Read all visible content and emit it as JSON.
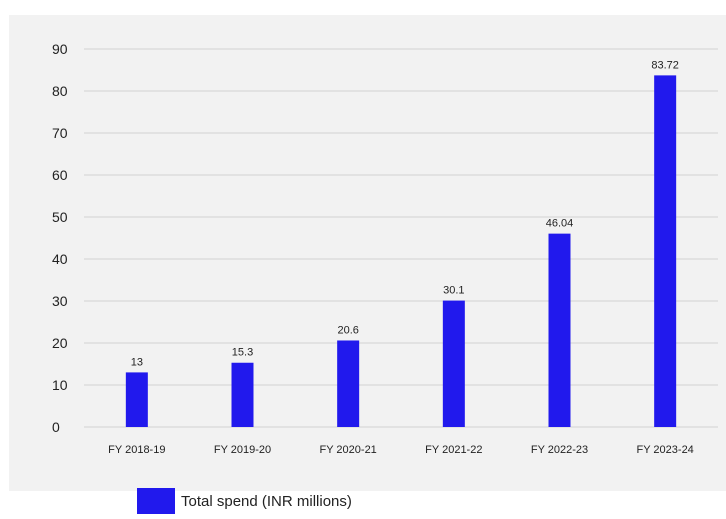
{
  "colors": {
    "bar": "#2119ed",
    "grid": "#d2d2d2",
    "text": "#222222",
    "background": "#f2f2f2"
  },
  "legend": {
    "label": "Total spend (INR millions)"
  },
  "chart_data": {
    "type": "bar",
    "title": "",
    "xlabel": "",
    "ylabel": "",
    "ylim": [
      0,
      90
    ],
    "yticks": [
      0,
      10,
      20,
      30,
      40,
      50,
      60,
      70,
      80,
      90
    ],
    "grid": true,
    "legend_position": "bottom-left",
    "categories": [
      "FY 2018-19",
      "FY 2019-20",
      "FY 2020-21",
      "FY 2021-22",
      "FY 2022-23",
      "FY 2023-24"
    ],
    "series": [
      {
        "name": "Total spend (INR millions)",
        "values": [
          13,
          15.3,
          20.6,
          30.1,
          46.04,
          83.72
        ],
        "labels": [
          "13",
          "15.3",
          "20.6",
          "30.1",
          "46.04",
          "83.72"
        ]
      }
    ]
  }
}
